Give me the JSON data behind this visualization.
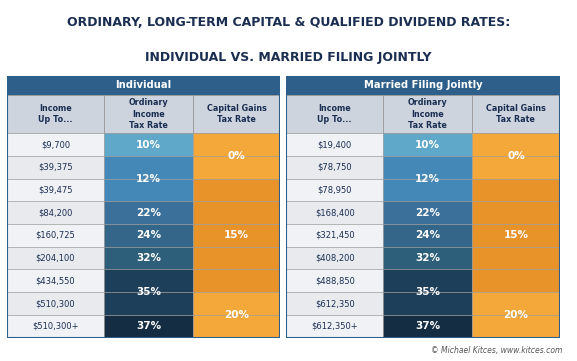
{
  "title_line1": "ORDINARY, LONG-TERM CAPITAL & QUALIFIED DIVIDEND RATES:",
  "title_line2": "INDIVIDUAL VS. MARRIED FILING JOINTLY",
  "title_color": "#1a2e52",
  "title_fontsize": 9.0,
  "header_bg": "#2e5f8a",
  "header_text_color": "#ffffff",
  "col_header_bg": "#cdd4de",
  "col_header_text_color": "#1a2e52",
  "income_col_bg": "#f0f2f5",
  "income_col_bg_alt": "#e8eaee",
  "income_text_color": "#1a2e52",
  "footer_text": "© Michael Kitces, www.kitces.com",
  "footer_color": "#555555",
  "individual": {
    "section_header": "Individual",
    "col_headers": [
      "Income\nUp To...",
      "Ordinary\nIncome\nTax Rate",
      "Capital Gains\nTax Rate"
    ],
    "rows": [
      {
        "income": "$9,700"
      },
      {
        "income": "$39,375"
      },
      {
        "income": "$39,475"
      },
      {
        "income": "$84,200"
      },
      {
        "income": "$160,725"
      },
      {
        "income": "$204,100"
      },
      {
        "income": "$434,550"
      },
      {
        "income": "$510,300"
      },
      {
        "income": "$510,300+"
      }
    ],
    "ord_groups": [
      {
        "label": "10%",
        "rows": [
          0
        ],
        "color": "#5fa8ca"
      },
      {
        "label": "12%",
        "rows": [
          1,
          2
        ],
        "color": "#4488b8"
      },
      {
        "label": "22%",
        "rows": [
          3
        ],
        "color": "#3a7099"
      },
      {
        "label": "24%",
        "rows": [
          4
        ],
        "color": "#336688"
      },
      {
        "label": "32%",
        "rows": [
          5
        ],
        "color": "#2e5f7a"
      },
      {
        "label": "35%",
        "rows": [
          6,
          7
        ],
        "color": "#1e3f5a"
      },
      {
        "label": "37%",
        "rows": [
          8
        ],
        "color": "#152d42"
      }
    ],
    "cg_groups": [
      {
        "label": "0%",
        "rows": [
          0,
          1
        ],
        "color": "#f5a83a"
      },
      {
        "label": "15%",
        "rows": [
          2,
          3,
          4,
          5,
          6
        ],
        "color": "#e8922a"
      },
      {
        "label": "20%",
        "rows": [
          7,
          8
        ],
        "color": "#f5a83a"
      }
    ]
  },
  "married": {
    "section_header": "Married Filing Jointly",
    "col_headers": [
      "Income\nUp To...",
      "Ordinary\nIncome\nTax Rate",
      "Capital Gains\nTax Rate"
    ],
    "rows": [
      {
        "income": "$19,400"
      },
      {
        "income": "$78,750"
      },
      {
        "income": "$78,950"
      },
      {
        "income": "$168,400"
      },
      {
        "income": "$321,450"
      },
      {
        "income": "$408,200"
      },
      {
        "income": "$488,850"
      },
      {
        "income": "$612,350"
      },
      {
        "income": "$612,350+"
      }
    ],
    "ord_groups": [
      {
        "label": "10%",
        "rows": [
          0
        ],
        "color": "#5fa8ca"
      },
      {
        "label": "12%",
        "rows": [
          1,
          2
        ],
        "color": "#4488b8"
      },
      {
        "label": "22%",
        "rows": [
          3
        ],
        "color": "#3a7099"
      },
      {
        "label": "24%",
        "rows": [
          4
        ],
        "color": "#336688"
      },
      {
        "label": "32%",
        "rows": [
          5
        ],
        "color": "#2e5f7a"
      },
      {
        "label": "35%",
        "rows": [
          6,
          7
        ],
        "color": "#1e3f5a"
      },
      {
        "label": "37%",
        "rows": [
          8
        ],
        "color": "#152d42"
      }
    ],
    "cg_groups": [
      {
        "label": "0%",
        "rows": [
          0,
          1
        ],
        "color": "#f5a83a"
      },
      {
        "label": "15%",
        "rows": [
          2,
          3,
          4,
          5,
          6
        ],
        "color": "#e8922a"
      },
      {
        "label": "20%",
        "rows": [
          7,
          8
        ],
        "color": "#f5a83a"
      }
    ]
  },
  "border_color": "#2e5f8a",
  "grid_color": "#999999",
  "n_rows": 9
}
